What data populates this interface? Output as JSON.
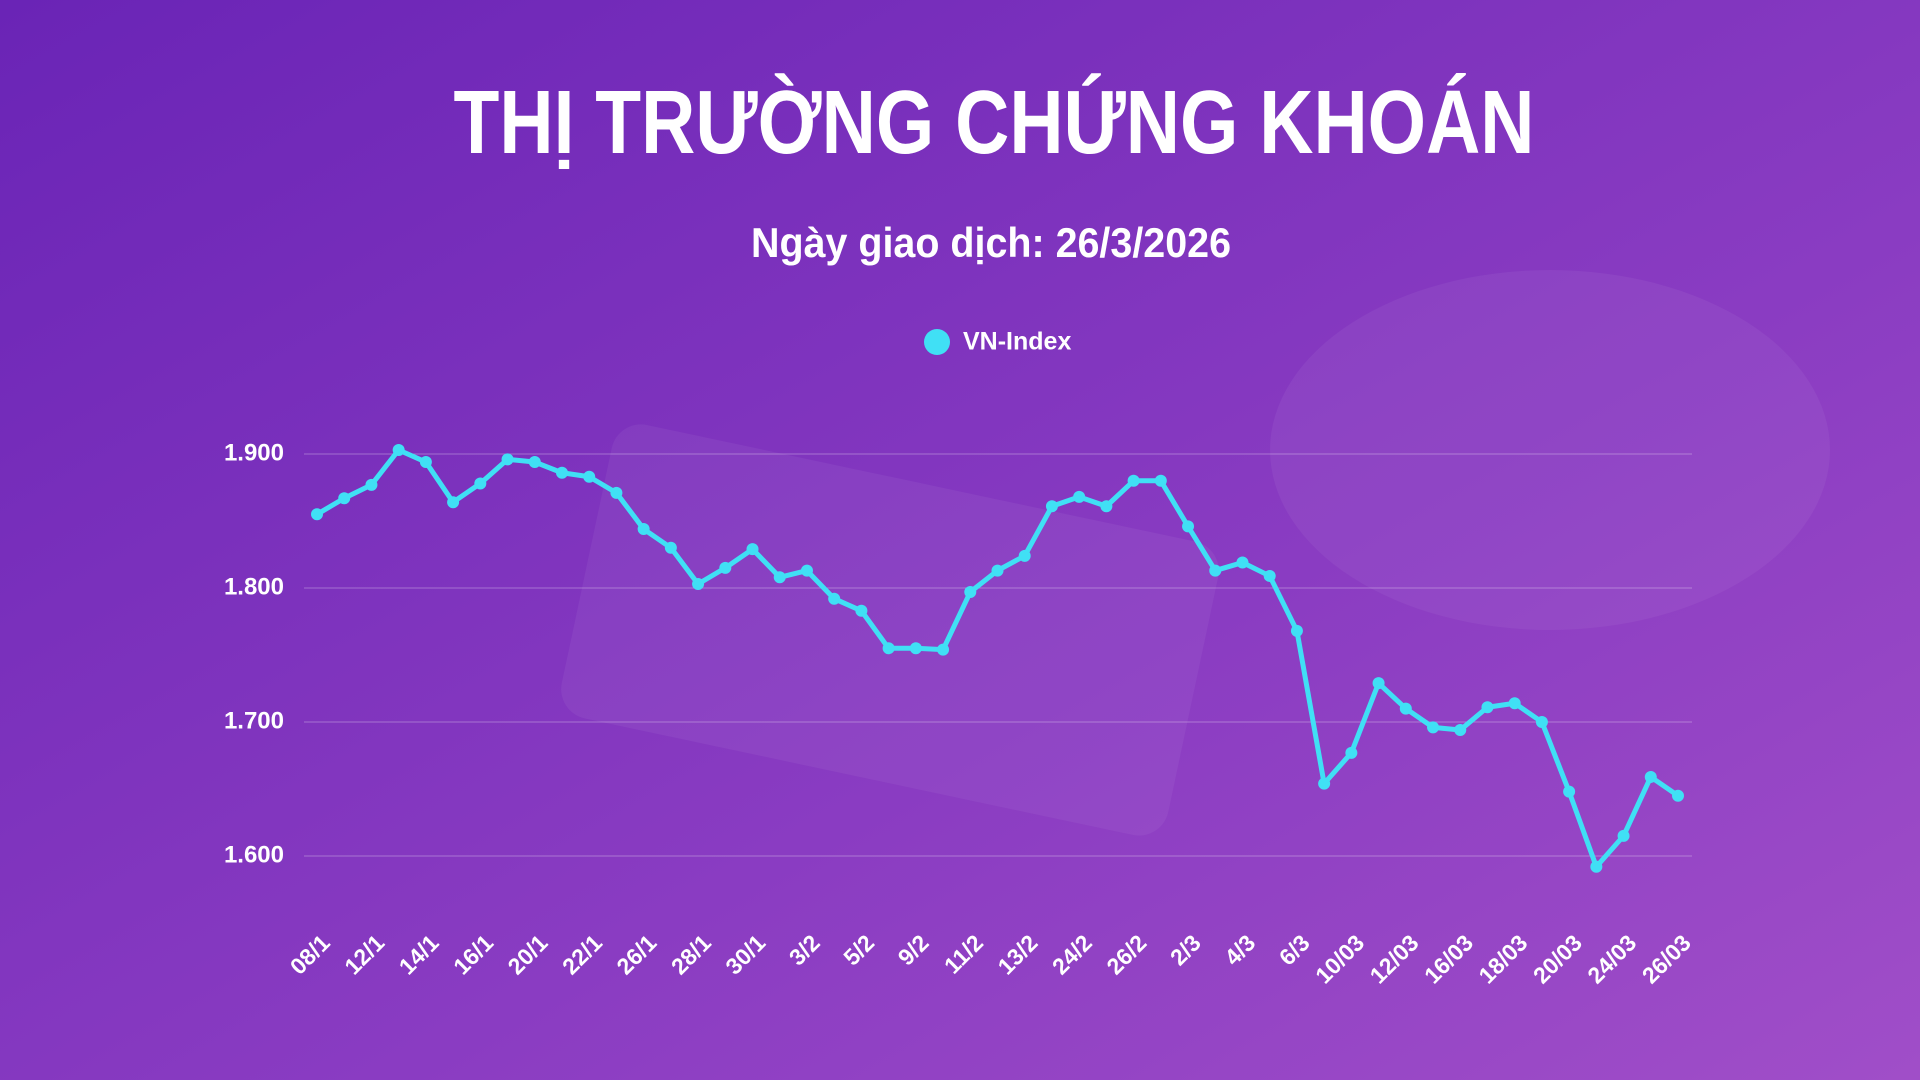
{
  "chart_data": {
    "type": "line",
    "title": "THỊ TRƯỜNG CHỨNG KHOÁN",
    "subtitle": "Ngày giao dịch: 26/3/2026",
    "categories": [
      "08/1",
      null,
      "12/1",
      null,
      "14/1",
      null,
      "16/1",
      null,
      "20/1",
      null,
      "22/1",
      null,
      "26/1",
      null,
      "28/1",
      null,
      "30/1",
      null,
      "3/2",
      null,
      "5/2",
      null,
      "9/2",
      null,
      "11/2",
      null,
      "13/2",
      null,
      "24/2",
      null,
      "26/2",
      null,
      "2/3",
      null,
      "4/3",
      null,
      "6/3",
      null,
      "10/03",
      null,
      "12/03",
      null,
      "16/03",
      null,
      "18/03",
      null,
      "20/03",
      null,
      "24/03",
      null,
      "26/03"
    ],
    "series": [
      {
        "name": "VN-Index",
        "color": "#40e0f5",
        "values": [
          1855,
          1867,
          1877,
          1903,
          1894,
          1864,
          1878,
          1896,
          1894,
          1886,
          1883,
          1871,
          1844,
          1830,
          1803,
          1815,
          1829,
          1808,
          1813,
          1792,
          1783,
          1755,
          1755,
          1754,
          1797,
          1813,
          1824,
          1861,
          1868,
          1861,
          1880,
          1880,
          1846,
          1813,
          1819,
          1809,
          1768,
          1654,
          1677,
          1729,
          1710,
          1696,
          1694,
          1711,
          1714,
          1700,
          1648,
          1592,
          1615,
          1659,
          1645
        ]
      }
    ],
    "ylim": [
      1550,
      1950
    ],
    "yticks": [
      {
        "value": 1600,
        "label": "1.600"
      },
      {
        "value": 1700,
        "label": "1.700"
      },
      {
        "value": 1800,
        "label": "1.800"
      },
      {
        "value": 1900,
        "label": "1.900"
      }
    ],
    "grid": true
  }
}
